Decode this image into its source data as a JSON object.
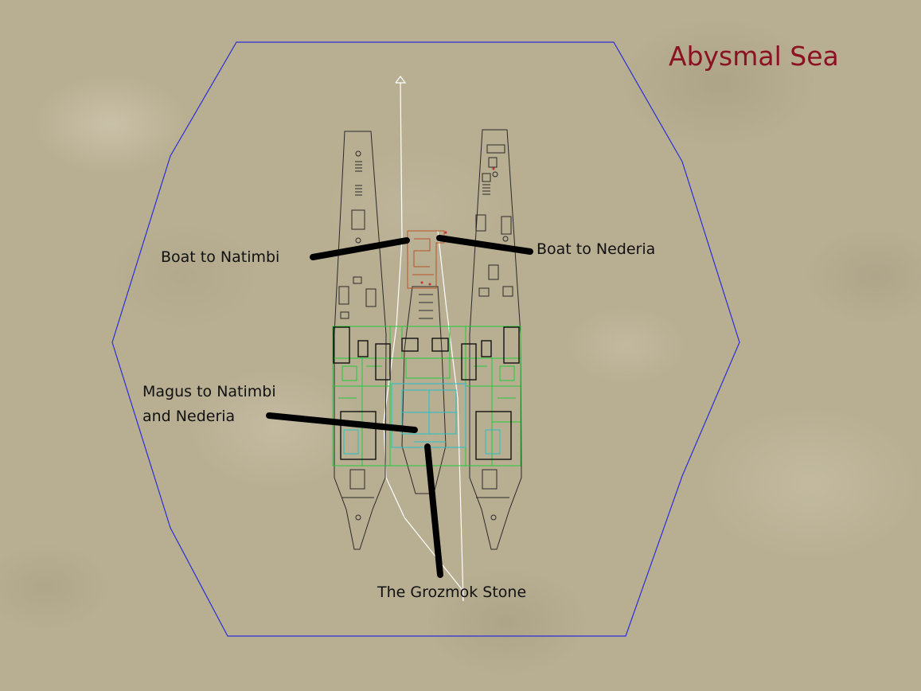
{
  "map": {
    "title": "Abysmal Sea",
    "title_color": "#8b1222",
    "labels": {
      "boat_natimbi": "Boat to Natimbi",
      "boat_nederia": "Boat to Nederia",
      "magus_line1": "Magus to Natimbi",
      "magus_line2": "and Nederia",
      "grozmok_stone": "The Grozmok Stone"
    },
    "colors": {
      "zone_boundary": "#2b2fd6",
      "hull_outline": "#2a2a2a",
      "deck_rooms": "#22c93a",
      "center_hall": "#1fc2c8",
      "dock_structure": "#b8542a",
      "route_line": "#ffffff",
      "pointer_lines": "#000000"
    }
  }
}
